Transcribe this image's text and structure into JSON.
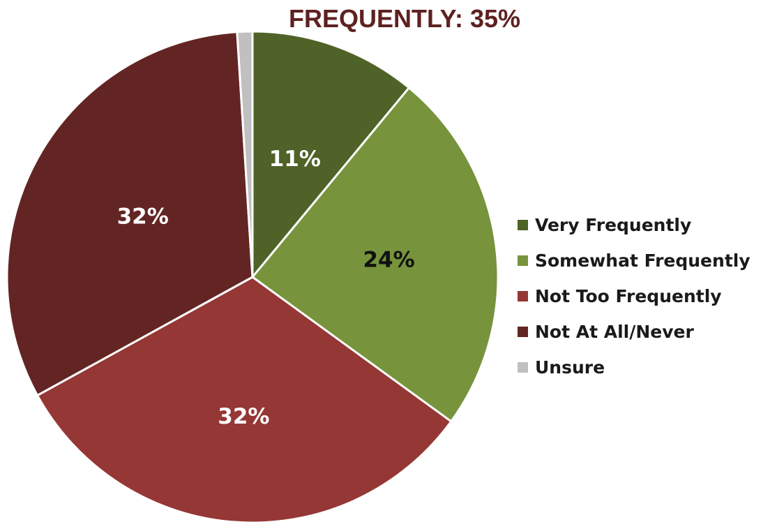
{
  "chart_data": {
    "type": "pie",
    "title": "FREQUENTLY: 35%",
    "categories": [
      "Very Frequently",
      "Somewhat Frequently",
      "Not Too Frequently",
      "Not At All/Never",
      "Unsure"
    ],
    "values": [
      11,
      24,
      32,
      32,
      1
    ],
    "data_labels": [
      "11%",
      "24%",
      "32%",
      "32%",
      ""
    ],
    "label_colors": [
      "#ffffff",
      "#111111",
      "#ffffff",
      "#ffffff",
      "#111111"
    ],
    "colors": [
      "#4f6228",
      "#77933c",
      "#953735",
      "#632523",
      "#c0c0c0"
    ],
    "start_angle_deg": 0,
    "direction": "clockwise",
    "legend_position": "right"
  }
}
